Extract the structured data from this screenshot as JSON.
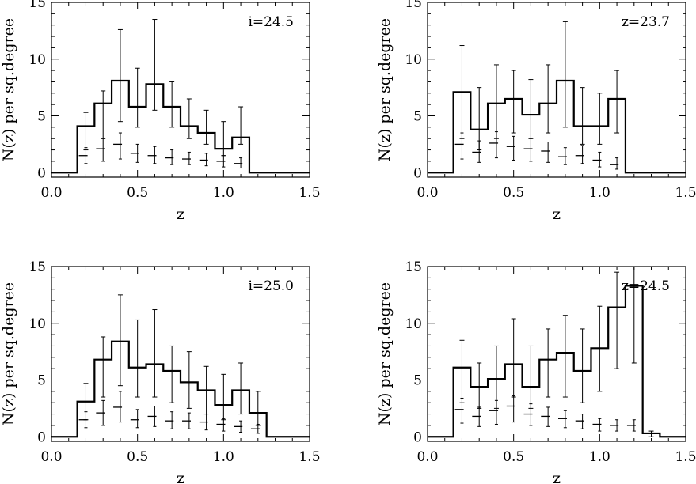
{
  "chart_data": [
    {
      "type": "histogram",
      "label": "i=24.5",
      "xlabel": "z",
      "ylabel": "N(z)  per  sq.degree",
      "xlim": [
        0.0,
        1.5
      ],
      "ylim": [
        -0.4,
        15
      ],
      "xticks": [
        "0.0",
        "0.5",
        "1.0",
        "1.5"
      ],
      "yticks": [
        "0",
        "5",
        "10",
        "15"
      ],
      "bin_edges": [
        0.15,
        0.25,
        0.35,
        0.45,
        0.55,
        0.65,
        0.75,
        0.85,
        0.95,
        1.05,
        1.15
      ],
      "series": [
        {
          "style": "solid",
          "values": [
            4.1,
            6.1,
            8.1,
            5.8,
            7.8,
            5.8,
            4.1,
            3.5,
            2.1,
            3.1
          ],
          "err_lo": [
            2.0,
            3.0,
            4.5,
            4.0,
            5.5,
            4.0,
            3.0,
            2.5,
            1.5,
            2.5
          ],
          "err_hi": [
            5.3,
            7.2,
            12.6,
            9.2,
            13.5,
            8.0,
            6.5,
            5.5,
            4.5,
            5.8
          ]
        },
        {
          "style": "dashed",
          "values": [
            1.5,
            2.1,
            2.5,
            1.7,
            1.5,
            1.3,
            1.2,
            1.1,
            1.0,
            0.8
          ],
          "err_lo": [
            0.8,
            1.0,
            1.2,
            0.9,
            0.8,
            0.7,
            0.7,
            0.6,
            0.5,
            0.4
          ],
          "err_hi": [
            2.2,
            3.0,
            3.5,
            2.5,
            2.3,
            2.0,
            1.8,
            1.7,
            1.5,
            1.3
          ]
        }
      ]
    },
    {
      "type": "histogram",
      "label": "z=23.7",
      "xlabel": "z",
      "ylabel": "N(z)  per  sq.degree",
      "xlim": [
        0.0,
        1.5
      ],
      "ylim": [
        -0.4,
        15
      ],
      "xticks": [
        "0.0",
        "0.5",
        "1.0",
        "1.5"
      ],
      "yticks": [
        "0",
        "5",
        "10",
        "15"
      ],
      "bin_edges": [
        0.15,
        0.25,
        0.35,
        0.45,
        0.55,
        0.65,
        0.75,
        0.85,
        0.95,
        1.05,
        1.15
      ],
      "series": [
        {
          "style": "solid",
          "values": [
            7.1,
            3.8,
            6.1,
            6.5,
            5.1,
            6.1,
            8.1,
            4.1,
            4.1,
            6.5
          ],
          "err_lo": [
            3.0,
            2.0,
            3.0,
            3.5,
            3.0,
            3.5,
            4.0,
            2.5,
            2.5,
            3.5
          ],
          "err_hi": [
            11.2,
            7.5,
            9.5,
            9.0,
            8.2,
            9.5,
            13.3,
            7.5,
            7.0,
            9.0
          ]
        },
        {
          "style": "dashed",
          "values": [
            2.5,
            1.8,
            2.6,
            2.3,
            2.1,
            1.9,
            1.4,
            1.5,
            1.1,
            0.7
          ],
          "err_lo": [
            1.2,
            0.9,
            1.3,
            1.1,
            1.0,
            0.9,
            0.7,
            0.8,
            0.5,
            0.3
          ],
          "err_hi": [
            3.5,
            2.8,
            3.6,
            3.2,
            3.0,
            2.7,
            2.2,
            2.4,
            1.8,
            1.3
          ]
        }
      ]
    },
    {
      "type": "histogram",
      "label": "i=25.0",
      "xlabel": "z",
      "ylabel": "N(z)  per  sq.degree",
      "xlim": [
        0.0,
        1.5
      ],
      "ylim": [
        -0.4,
        15
      ],
      "xticks": [
        "0.0",
        "0.5",
        "1.0",
        "1.5"
      ],
      "yticks": [
        "0",
        "5",
        "10",
        "15"
      ],
      "bin_edges": [
        0.15,
        0.25,
        0.35,
        0.45,
        0.55,
        0.65,
        0.75,
        0.85,
        0.95,
        1.05,
        1.15,
        1.25
      ],
      "series": [
        {
          "style": "solid",
          "values": [
            3.1,
            6.8,
            8.4,
            6.1,
            6.4,
            5.8,
            4.8,
            4.1,
            2.8,
            4.1,
            2.1
          ],
          "err_lo": [
            1.5,
            3.5,
            4.5,
            3.5,
            3.5,
            3.0,
            2.5,
            2.0,
            1.5,
            2.0,
            1.0
          ],
          "err_hi": [
            4.7,
            8.8,
            12.5,
            10.3,
            11.2,
            8.0,
            7.5,
            6.2,
            5.5,
            6.5,
            4.0
          ]
        },
        {
          "style": "dashed",
          "values": [
            1.5,
            2.1,
            2.6,
            1.5,
            1.8,
            1.4,
            1.4,
            1.3,
            1.1,
            0.9,
            0.7
          ],
          "err_lo": [
            0.8,
            1.0,
            1.3,
            0.8,
            0.9,
            0.7,
            0.7,
            0.6,
            0.5,
            0.4,
            0.3
          ],
          "err_hi": [
            2.2,
            3.2,
            4.0,
            2.4,
            2.7,
            2.2,
            2.1,
            2.0,
            1.6,
            1.4,
            1.1
          ]
        }
      ]
    },
    {
      "type": "histogram",
      "label": "z=24.5",
      "xlabel": "z",
      "ylabel": "N(z)  per  sq.degree",
      "xlim": [
        0.0,
        1.5
      ],
      "ylim": [
        -0.4,
        15
      ],
      "xticks": [
        "0.0",
        "0.5",
        "1.0",
        "1.5"
      ],
      "yticks": [
        "0",
        "5",
        "10",
        "15"
      ],
      "bin_edges": [
        0.15,
        0.25,
        0.35,
        0.45,
        0.55,
        0.65,
        0.75,
        0.85,
        0.95,
        1.05,
        1.15,
        1.25,
        1.35
      ],
      "series": [
        {
          "style": "solid",
          "values": [
            6.1,
            4.4,
            5.1,
            6.4,
            4.4,
            6.8,
            7.4,
            5.8,
            7.8,
            11.4,
            13.3,
            0.3
          ],
          "err_lo": [
            3.0,
            2.5,
            2.5,
            3.5,
            2.5,
            3.5,
            3.5,
            3.0,
            4.0,
            6.0,
            6.5,
            0.0
          ],
          "err_hi": [
            8.5,
            6.5,
            8.0,
            10.4,
            8.0,
            9.5,
            10.7,
            9.5,
            11.5,
            14.5,
            15.0,
            0.5
          ]
        },
        {
          "style": "dashed",
          "values": [
            2.4,
            1.8,
            2.3,
            2.7,
            2.0,
            1.8,
            1.6,
            1.4,
            1.1,
            1.0,
            1.0,
            0.0
          ],
          "err_lo": [
            1.2,
            0.9,
            1.1,
            1.3,
            1.0,
            0.9,
            0.8,
            0.7,
            0.5,
            0.5,
            0.5,
            0.0
          ],
          "err_hi": [
            3.4,
            2.6,
            3.2,
            3.6,
            2.9,
            2.6,
            2.3,
            2.0,
            1.6,
            1.5,
            1.5,
            0.0
          ]
        }
      ]
    }
  ]
}
